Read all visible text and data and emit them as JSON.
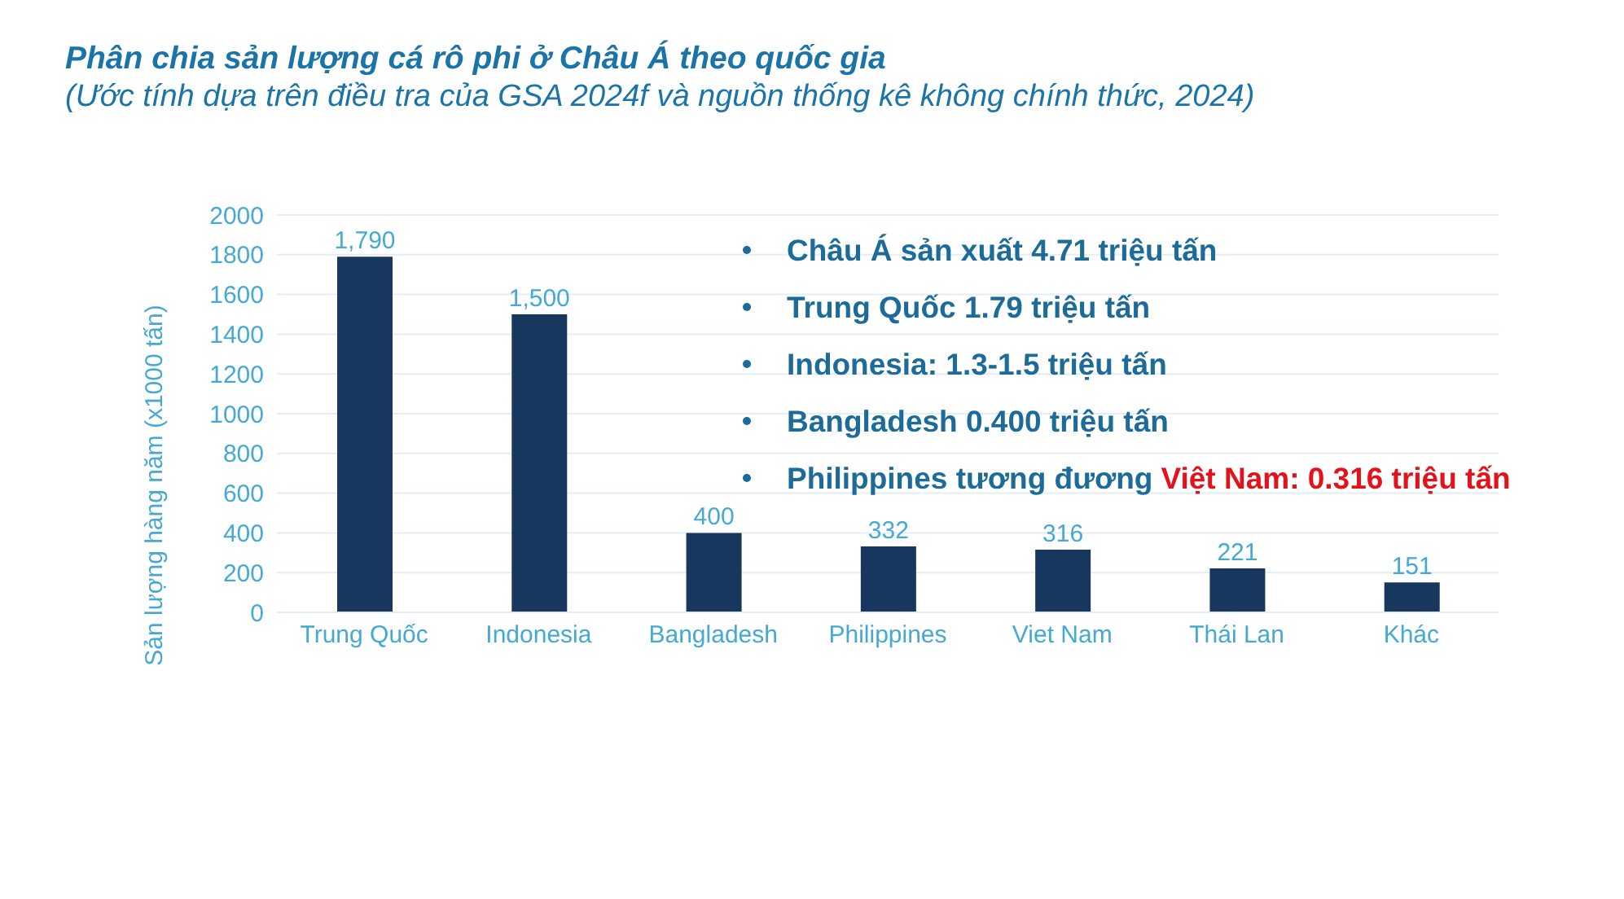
{
  "chart_data": {
    "type": "bar",
    "title": "Phân chia sản lượng cá rô phi ở Châu Á theo quốc gia",
    "subtitle": "(Ước tính dựa trên điều tra của GSA 2024f và nguồn thống kê không chính thức, 2024)",
    "ylabel": "Sản lượng hàng năm (x1000 tấn)",
    "categories": [
      "Trung Quốc",
      "Indonesia",
      "Bangladesh",
      "Philippines",
      "Viet Nam",
      "Thái Lan",
      "Khác"
    ],
    "values": [
      1790,
      1500,
      400,
      332,
      316,
      221,
      151
    ],
    "value_labels": [
      "1,790",
      "1,500",
      "400",
      "332",
      "316",
      "221",
      "151"
    ],
    "color": "#17375e",
    "ylim": [
      0,
      2000
    ],
    "yticks": [
      0,
      200,
      400,
      600,
      800,
      1000,
      1200,
      1400,
      1600,
      1800,
      2000
    ],
    "grid": "y",
    "annotations": [
      "Châu Á sản xuất 4.71 triệu tấn",
      "Trung Quốc 1.79 triệu tấn",
      "Indonesia: 1.3-1.5 triệu tấn",
      "Bangladesh 0.400 triệu tấn",
      "Philippines tương đương",
      "Việt Nam: 0.316 triệu tấn"
    ]
  }
}
